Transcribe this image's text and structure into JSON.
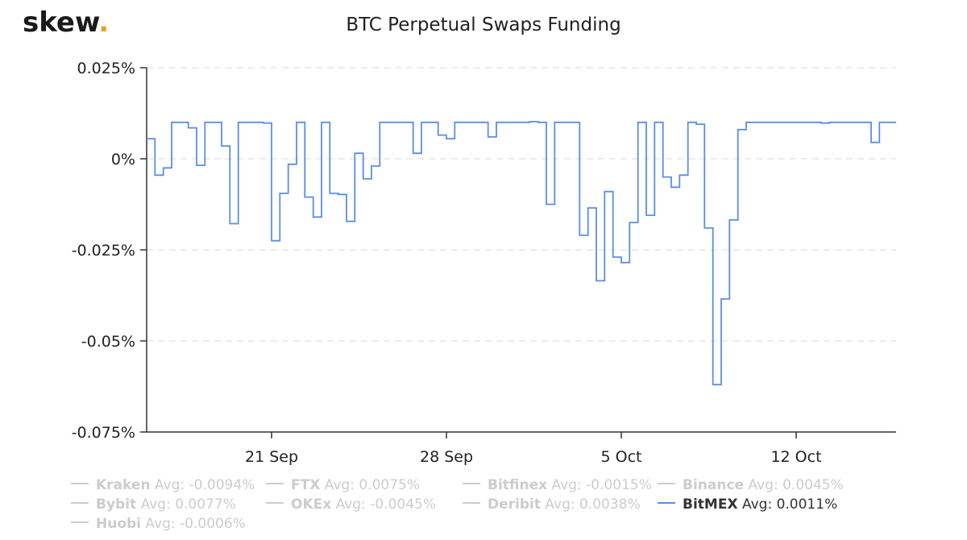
{
  "logo": {
    "text": "skew",
    "dot": "."
  },
  "colors": {
    "line": "#5b8ee6",
    "legend_inactive": "#cccccc",
    "grid": "#e6e6e6",
    "axis": "#333333",
    "logo_dot": "#e8a317"
  },
  "chart_data": {
    "type": "line",
    "title": "BTC Perpetual Swaps Funding",
    "xlabel": "",
    "ylabel": "",
    "x_ticks": [
      "21 Sep",
      "28 Sep",
      "5 Oct",
      "12 Oct"
    ],
    "y_ticks": [
      "0.025%",
      "0%",
      "-0.025%",
      "-0.05%",
      "-0.075%"
    ],
    "y_tick_values": [
      0.025,
      0,
      -0.025,
      -0.05,
      -0.075
    ],
    "ylim": [
      -0.075,
      0.025
    ],
    "xlim": [
      "2020-09-16T00:00",
      "2020-10-16T00:00"
    ],
    "grid": true,
    "legend_position": "bottom",
    "series": [
      {
        "name": "BitMEX",
        "step": true,
        "points": [
          [
            "2020-09-16T00:00",
            0.0055
          ],
          [
            "2020-09-16T08:00",
            -0.0045
          ],
          [
            "2020-09-16T16:00",
            -0.0025
          ],
          [
            "2020-09-17T00:00",
            0.01
          ],
          [
            "2020-09-17T16:00",
            0.0085
          ],
          [
            "2020-09-18T00:00",
            -0.0018
          ],
          [
            "2020-09-18T08:00",
            0.01
          ],
          [
            "2020-09-19T00:00",
            0.0035
          ],
          [
            "2020-09-19T08:00",
            -0.0178
          ],
          [
            "2020-09-19T16:00",
            0.01
          ],
          [
            "2020-09-20T16:00",
            0.0098
          ],
          [
            "2020-09-21T00:00",
            -0.0225
          ],
          [
            "2020-09-21T08:00",
            -0.0095
          ],
          [
            "2020-09-21T16:00",
            -0.0015
          ],
          [
            "2020-09-22T00:00",
            0.01
          ],
          [
            "2020-09-22T08:00",
            -0.0105
          ],
          [
            "2020-09-22T16:00",
            -0.016
          ],
          [
            "2020-09-23T00:00",
            0.01
          ],
          [
            "2020-09-23T08:00",
            -0.0095
          ],
          [
            "2020-09-23T16:00",
            -0.0098
          ],
          [
            "2020-09-24T00:00",
            -0.0172
          ],
          [
            "2020-09-24T08:00",
            0.0015
          ],
          [
            "2020-09-24T16:00",
            -0.0055
          ],
          [
            "2020-09-25T00:00",
            -0.002
          ],
          [
            "2020-09-25T08:00",
            0.01
          ],
          [
            "2020-09-26T16:00",
            0.0015
          ],
          [
            "2020-09-27T00:00",
            0.01
          ],
          [
            "2020-09-27T16:00",
            0.0065
          ],
          [
            "2020-09-28T00:00",
            0.0055
          ],
          [
            "2020-09-28T08:00",
            0.01
          ],
          [
            "2020-09-29T16:00",
            0.006
          ],
          [
            "2020-09-30T00:00",
            0.01
          ],
          [
            "2020-10-01T08:00",
            0.0102
          ],
          [
            "2020-10-01T16:00",
            0.01
          ],
          [
            "2020-10-02T00:00",
            -0.0125
          ],
          [
            "2020-10-02T08:00",
            0.01
          ],
          [
            "2020-10-03T08:00",
            -0.021
          ],
          [
            "2020-10-03T16:00",
            -0.0135
          ],
          [
            "2020-10-04T00:00",
            -0.0335
          ],
          [
            "2020-10-04T08:00",
            -0.009
          ],
          [
            "2020-10-04T16:00",
            -0.027
          ],
          [
            "2020-10-05T00:00",
            -0.0285
          ],
          [
            "2020-10-05T08:00",
            -0.0175
          ],
          [
            "2020-10-05T16:00",
            0.01
          ],
          [
            "2020-10-06T00:00",
            -0.0155
          ],
          [
            "2020-10-06T08:00",
            0.01
          ],
          [
            "2020-10-06T16:00",
            -0.005
          ],
          [
            "2020-10-07T00:00",
            -0.0078
          ],
          [
            "2020-10-07T08:00",
            -0.0045
          ],
          [
            "2020-10-07T16:00",
            0.01
          ],
          [
            "2020-10-08T00:00",
            0.0095
          ],
          [
            "2020-10-08T08:00",
            -0.019
          ],
          [
            "2020-10-08T16:00",
            -0.062
          ],
          [
            "2020-10-09T00:00",
            -0.0385
          ],
          [
            "2020-10-09T08:00",
            -0.0168
          ],
          [
            "2020-10-09T16:00",
            0.008
          ],
          [
            "2020-10-10T00:00",
            0.01
          ],
          [
            "2020-10-13T00:00",
            0.0098
          ],
          [
            "2020-10-13T08:00",
            0.01
          ],
          [
            "2020-10-15T00:00",
            0.0045
          ],
          [
            "2020-10-15T08:00",
            0.01
          ],
          [
            "2020-10-16T00:00",
            0.01
          ]
        ]
      }
    ]
  },
  "legend": [
    {
      "name": "Kraken",
      "avg": "Avg: -0.0094%",
      "active": false
    },
    {
      "name": "FTX",
      "avg": "Avg: 0.0075%",
      "active": false
    },
    {
      "name": "Bitfinex",
      "avg": "Avg: -0.0015%",
      "active": false
    },
    {
      "name": "Binance",
      "avg": "Avg: 0.0045%",
      "active": false
    },
    {
      "name": "Bybit",
      "avg": "Avg: 0.0077%",
      "active": false
    },
    {
      "name": "OKEx",
      "avg": "Avg: -0.0045%",
      "active": false
    },
    {
      "name": "Deribit",
      "avg": "Avg: 0.0038%",
      "active": false
    },
    {
      "name": "BitMEX",
      "avg": "Avg: 0.0011%",
      "active": true
    },
    {
      "name": "Huobi",
      "avg": "Avg: -0.0006%",
      "active": false
    }
  ]
}
